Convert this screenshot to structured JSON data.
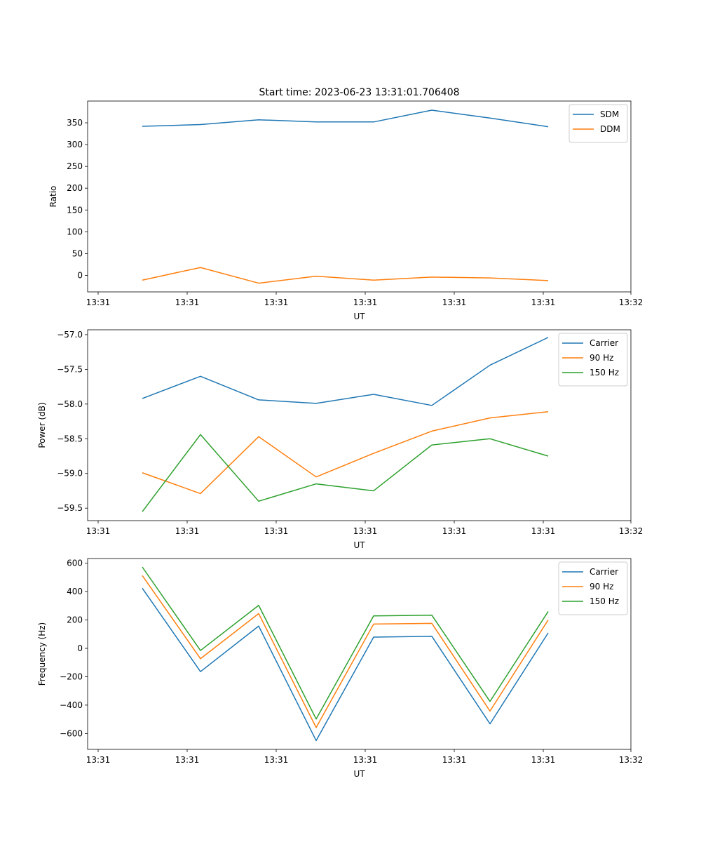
{
  "chart_data": [
    {
      "type": "line",
      "title": "Start time: 2023-06-23 13:31:01.706408",
      "xlabel": "UT",
      "ylabel": "Ratio",
      "x_ticks": [
        "13:31",
        "13:31",
        "13:31",
        "13:31",
        "13:31",
        "13:31",
        "13:32"
      ],
      "y_ticks": [
        0,
        50,
        100,
        150,
        200,
        250,
        300,
        350
      ],
      "ylim": [
        -38,
        400
      ],
      "legend": "top-right",
      "grid": false,
      "series": [
        {
          "name": "SDM",
          "color": "#1f77b4",
          "values": [
            342,
            346,
            357,
            352,
            352,
            379,
            361,
            341
          ]
        },
        {
          "name": "DDM",
          "color": "#ff7f0e",
          "values": [
            -11,
            18,
            -18,
            -2,
            -11,
            -4,
            -6,
            -12
          ]
        }
      ]
    },
    {
      "type": "line",
      "title": "",
      "xlabel": "UT",
      "ylabel": "Power (dB)",
      "x_ticks": [
        "13:31",
        "13:31",
        "13:31",
        "13:31",
        "13:31",
        "13:31",
        "13:32"
      ],
      "y_ticks": [
        -59.5,
        -59.0,
        -58.5,
        -58.0,
        -57.5,
        -57.0
      ],
      "y_tick_labels": [
        "−59.5",
        "−59.0",
        "−58.5",
        "−58.0",
        "−57.5",
        "−57.0"
      ],
      "ylim": [
        -59.68,
        -56.93
      ],
      "legend": "top-right",
      "grid": false,
      "series": [
        {
          "name": "Carrier",
          "color": "#1f77b4",
          "values": [
            -57.92,
            -57.6,
            -57.94,
            -57.99,
            -57.86,
            -58.02,
            -57.44,
            -57.04
          ]
        },
        {
          "name": "90 Hz",
          "color": "#ff7f0e",
          "values": [
            -58.99,
            -59.29,
            -58.47,
            -59.05,
            -58.71,
            -58.39,
            -58.2,
            -58.11
          ]
        },
        {
          "name": "150 Hz",
          "color": "#2ca02c",
          "values": [
            -59.55,
            -58.44,
            -59.4,
            -59.15,
            -59.25,
            -58.59,
            -58.5,
            -58.75
          ]
        }
      ]
    },
    {
      "type": "line",
      "title": "",
      "xlabel": "UT",
      "ylabel": "Frequency (Hz)",
      "x_ticks": [
        "13:31",
        "13:31",
        "13:31",
        "13:31",
        "13:31",
        "13:31",
        "13:32"
      ],
      "y_ticks": [
        -600,
        -400,
        -200,
        0,
        200,
        400,
        600
      ],
      "y_tick_labels": [
        "−600",
        "−400",
        "−200",
        "0",
        "200",
        "400",
        "600"
      ],
      "ylim": [
        -712,
        633
      ],
      "legend": "top-right",
      "grid": false,
      "series": [
        {
          "name": "Carrier",
          "color": "#1f77b4",
          "values": [
            424,
            -164,
            157,
            -650,
            79,
            85,
            -532,
            109
          ]
        },
        {
          "name": "90 Hz",
          "color": "#ff7f0e",
          "values": [
            513,
            -73,
            245,
            -558,
            171,
            176,
            -442,
            200
          ]
        },
        {
          "name": "150 Hz",
          "color": "#2ca02c",
          "values": [
            573,
            -15,
            303,
            -498,
            229,
            234,
            -374,
            260
          ]
        }
      ]
    }
  ]
}
